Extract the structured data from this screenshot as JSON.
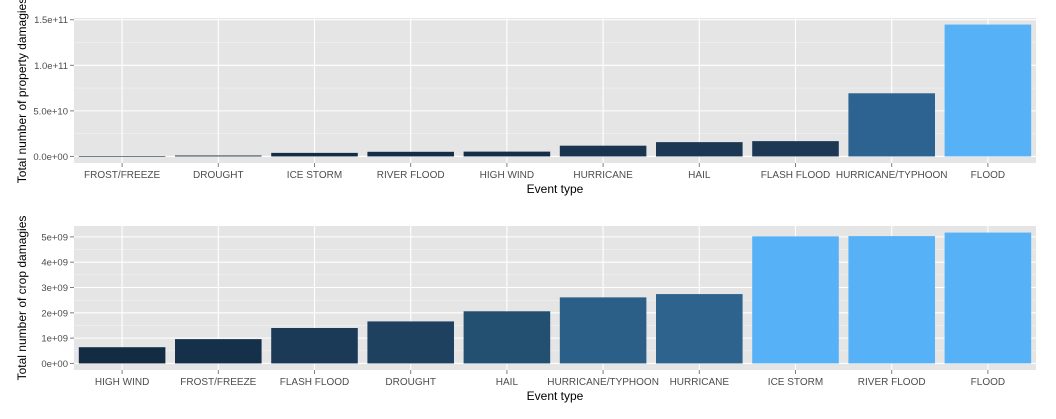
{
  "chart_data": [
    {
      "type": "bar",
      "xlabel": "Event type",
      "ylabel": "Total number of property damagies",
      "categories": [
        "FROST/FREEZE",
        "DROUGHT",
        "ICE STORM",
        "RIVER FLOOD",
        "HIGH WIND",
        "HURRICANE",
        "HAIL",
        "FLASH FLOOD",
        "HURRICANE/TYPHOON",
        "FLOOD"
      ],
      "values": [
        100000000.0,
        1000000000.0,
        3900000000.0,
        5100000000.0,
        5300000000.0,
        11800000000.0,
        15700000000.0,
        16800000000.0,
        69300000000.0,
        144700000000.0
      ],
      "colors": [
        "#132B43",
        "#132B43",
        "#142d46",
        "#152e48",
        "#152f48",
        "#19344f",
        "#1b3754",
        "#1c3855",
        "#2d6391",
        "#56B1F7"
      ],
      "yticks": [
        0,
        50000000000.0,
        100000000000.0,
        150000000000.0
      ],
      "ytick_labels": [
        "0.0e+00",
        "5.0e+10",
        "1.0e+11",
        "1.5e+11"
      ],
      "ylim": [
        -7200000000.0,
        151900000000.0
      ],
      "grid": true
    },
    {
      "type": "bar",
      "xlabel": "Event type",
      "ylabel": "Total number of crop damagies",
      "categories": [
        "HIGH WIND",
        "FROST/FREEZE",
        "FLASH FLOOD",
        "DROUGHT",
        "HAIL",
        "HURRICANE/TYPHOON",
        "HURRICANE",
        "ICE STORM",
        "RIVER FLOOD",
        "FLOOD"
      ],
      "values": [
        640000000.0,
        960000000.0,
        1400000000.0,
        1660000000.0,
        2060000000.0,
        2610000000.0,
        2740000000.0,
        5020000000.0,
        5030000000.0,
        5170000000.0
      ],
      "colors": [
        "#132B43",
        "#15304a",
        "#1a3a58",
        "#1e4160",
        "#235071",
        "#2c5f88",
        "#2d638d",
        "#56B1F7",
        "#56B1F7",
        "#56B1F7"
      ],
      "yticks": [
        0,
        1000000000.0,
        2000000000.0,
        3000000000.0,
        4000000000.0,
        5000000000.0
      ],
      "ytick_labels": [
        "0e+00",
        "1e+09",
        "2e+09",
        "3e+09",
        "4e+09",
        "5e+09"
      ],
      "ylim": [
        -260000000.0,
        5430000000.0
      ],
      "grid": true
    }
  ]
}
